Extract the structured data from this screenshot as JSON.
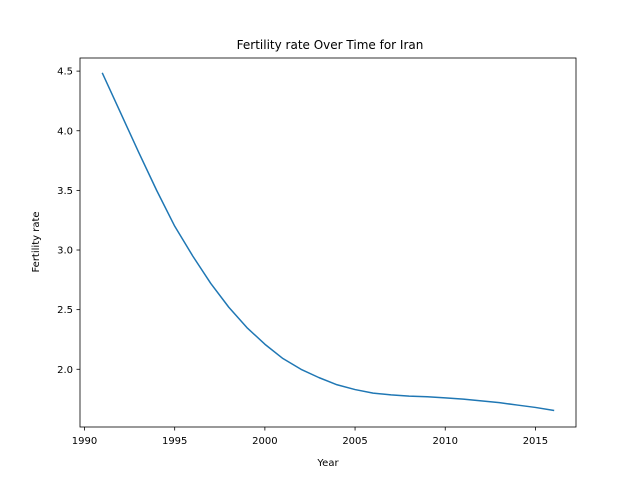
{
  "chart_data": {
    "type": "line",
    "title": "Fertility rate Over Time for Iran",
    "xlabel": "Year",
    "ylabel": "Fertility rate",
    "xlim": [
      1989.75,
      2017.25
    ],
    "ylim": [
      1.516,
      4.61
    ],
    "xticks": [
      1990,
      1995,
      2000,
      2005,
      2010,
      2015
    ],
    "yticks": [
      2.0,
      2.5,
      3.0,
      3.5,
      4.0,
      4.5
    ],
    "ytick_labels": [
      "2.0",
      "2.5",
      "3.0",
      "3.5",
      "4.0",
      "4.5"
    ],
    "grid": false,
    "legend": "none",
    "series": [
      {
        "color": "#1f77b4",
        "x": [
          1991,
          1992,
          1993,
          1994,
          1995,
          1996,
          1997,
          1998,
          1999,
          2000,
          2001,
          2002,
          2003,
          2004,
          2005,
          2006,
          2007,
          2008,
          2009,
          2010,
          2011,
          2012,
          2013,
          2014,
          2015,
          2016
        ],
        "y": [
          4.48,
          4.15,
          3.82,
          3.5,
          3.2,
          2.95,
          2.72,
          2.52,
          2.35,
          2.21,
          2.09,
          2.0,
          1.93,
          1.87,
          1.83,
          1.8,
          1.785,
          1.775,
          1.77,
          1.76,
          1.75,
          1.735,
          1.72,
          1.7,
          1.68,
          1.655
        ]
      }
    ]
  }
}
